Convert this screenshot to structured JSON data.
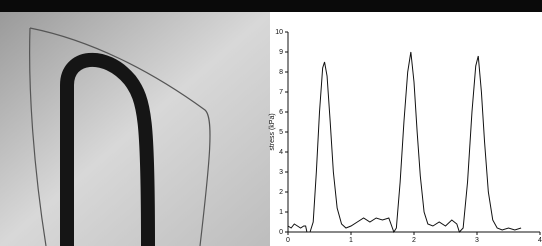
{
  "chart_data": {
    "type": "line",
    "y_label": "stress (kPa)",
    "x": [
      0,
      0.05,
      0.1,
      0.15,
      0.2,
      0.25,
      0.28,
      0.3,
      0.35,
      0.4,
      0.45,
      0.5,
      0.55,
      0.58,
      0.62,
      0.67,
      0.72,
      0.78,
      0.85,
      0.92,
      1.0,
      1.1,
      1.2,
      1.3,
      1.4,
      1.5,
      1.6,
      1.68,
      1.72,
      1.78,
      1.84,
      1.9,
      1.95,
      2.0,
      2.05,
      2.1,
      2.16,
      2.22,
      2.3,
      2.4,
      2.5,
      2.6,
      2.68,
      2.72,
      2.78,
      2.85,
      2.92,
      2.98,
      3.02,
      3.07,
      3.12,
      3.18,
      3.25,
      3.32,
      3.4,
      3.5,
      3.6,
      3.7
    ],
    "values": [
      0.3,
      0.2,
      0.4,
      0.3,
      0.2,
      0.3,
      0.3,
      0,
      0,
      0.5,
      3,
      6,
      8.2,
      8.5,
      7.8,
      5.5,
      3,
      1.2,
      0.4,
      0.2,
      0.3,
      0.5,
      0.7,
      0.5,
      0.7,
      0.6,
      0.7,
      0,
      0.2,
      2.5,
      5.5,
      8,
      9,
      7.5,
      5,
      2.8,
      1,
      0.4,
      0.3,
      0.5,
      0.3,
      0.6,
      0.4,
      0,
      0.2,
      2.5,
      6,
      8.3,
      8.8,
      7,
      4.5,
      2,
      0.6,
      0.2,
      0.1,
      0.2,
      0.1,
      0.2
    ],
    "color": "#111111",
    "xlim": [
      0,
      4
    ],
    "xticks": [
      0,
      1,
      2,
      3,
      4
    ],
    "ylim": [
      0,
      10
    ],
    "yticks": [
      0,
      1,
      2,
      3,
      4,
      5,
      6,
      7,
      8,
      9,
      10
    ]
  }
}
